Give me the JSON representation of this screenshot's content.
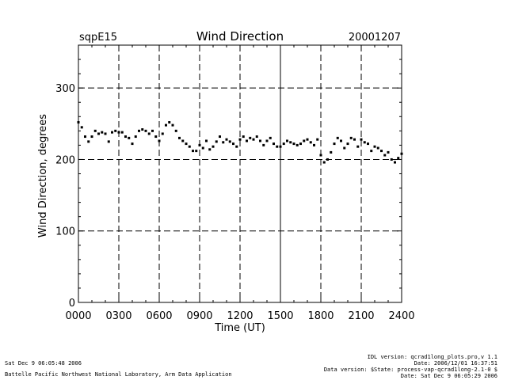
{
  "chart_data": {
    "type": "scatter",
    "title": "Wind Direction",
    "site": "sqpE15",
    "date": "20001207",
    "xlabel": "Time (UT)",
    "ylabel": "Wind Direction, degrees",
    "xlim": [
      0,
      24
    ],
    "ylim": [
      0,
      360
    ],
    "x_ticks": [
      0,
      3,
      6,
      9,
      12,
      15,
      18,
      21,
      24
    ],
    "x_tick_labels": [
      "0000",
      "0300",
      "0600",
      "0900",
      "1200",
      "1500",
      "1800",
      "2100",
      "2400"
    ],
    "y_ticks": [
      0,
      100,
      200,
      300
    ],
    "y_tick_labels": [
      "0",
      "100",
      "200",
      "300"
    ],
    "dashed_vlines": [
      3,
      6,
      9,
      12,
      18,
      21
    ],
    "solid_vlines": [
      15
    ],
    "dashed_hlines": [
      100,
      200,
      300
    ],
    "grid": true,
    "series": [
      {
        "name": "Wind Direction",
        "marker": "dot",
        "x": [
          0.0,
          0.25,
          0.5,
          0.75,
          1.0,
          1.25,
          1.5,
          1.75,
          2.0,
          2.25,
          2.5,
          2.75,
          3.0,
          3.25,
          3.5,
          3.75,
          4.0,
          4.25,
          4.5,
          4.75,
          5.0,
          5.25,
          5.5,
          5.75,
          6.0,
          6.25,
          6.5,
          6.75,
          7.0,
          7.25,
          7.5,
          7.75,
          8.0,
          8.25,
          8.5,
          8.75,
          9.0,
          9.25,
          9.5,
          9.75,
          10.0,
          10.25,
          10.5,
          10.75,
          11.0,
          11.25,
          11.5,
          11.75,
          12.0,
          12.25,
          12.5,
          12.75,
          13.0,
          13.25,
          13.5,
          13.75,
          14.0,
          14.25,
          14.5,
          14.75,
          15.0,
          15.25,
          15.5,
          15.75,
          16.0,
          16.25,
          16.5,
          16.75,
          17.0,
          17.25,
          17.5,
          17.75,
          18.0,
          18.25,
          18.5,
          18.75,
          19.0,
          19.25,
          19.5,
          19.75,
          20.0,
          20.25,
          20.5,
          20.75,
          21.0,
          21.25,
          21.5,
          21.75,
          22.0,
          22.25,
          22.5,
          22.75,
          23.0,
          23.25,
          23.5,
          23.75,
          24.0
        ],
        "y": [
          252,
          245,
          232,
          225,
          232,
          240,
          236,
          238,
          236,
          225,
          238,
          240,
          238,
          238,
          232,
          230,
          222,
          232,
          240,
          242,
          240,
          236,
          240,
          232,
          226,
          236,
          248,
          252,
          248,
          240,
          230,
          226,
          222,
          218,
          212,
          212,
          220,
          216,
          226,
          214,
          218,
          225,
          232,
          224,
          228,
          225,
          222,
          218,
          228,
          232,
          226,
          230,
          228,
          232,
          226,
          220,
          226,
          230,
          222,
          218,
          218,
          222,
          226,
          224,
          222,
          220,
          222,
          226,
          228,
          224,
          220,
          228,
          206,
          196,
          200,
          210,
          222,
          230,
          226,
          216,
          222,
          230,
          228,
          218,
          228,
          224,
          222,
          212,
          218,
          216,
          212,
          206,
          210,
          200,
          196,
          202,
          208
        ]
      }
    ]
  },
  "footer": {
    "left_line1": "Sat Dec  9 06:05:48 2006",
    "left_line2": "Battelle Pacific Northwest National Laboratory, Arm Data Application",
    "right_line1": "IDL version: qcrad1long_plots.pro,v 1.1",
    "right_line2": "Date: 2006/12/01 16:37:51",
    "right_line3": "Data version: $State: process-vap-qcrad1long-2.1-0 $",
    "right_line4": "Date: Sat Dec  9 06:05:29 2006"
  }
}
